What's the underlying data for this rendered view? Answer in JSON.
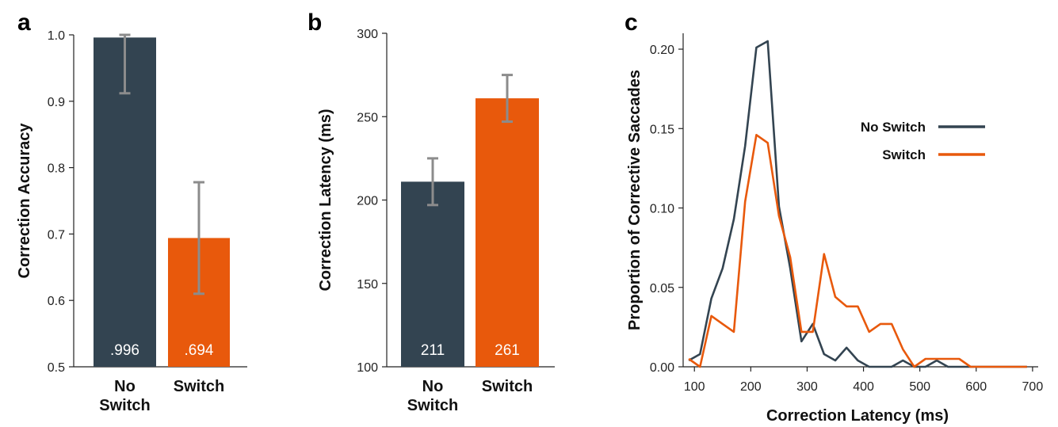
{
  "colors": {
    "no_switch": "#334451",
    "switch": "#E8590C",
    "error_bar": "#8C8C8C",
    "axis": "#222222"
  },
  "chart_data": [
    {
      "panel": "a",
      "type": "bar",
      "categories": [
        "No\nSwitch",
        "Switch"
      ],
      "values": [
        0.996,
        0.694
      ],
      "value_labels": [
        ".996",
        ".694"
      ],
      "error_low": [
        0.912,
        0.61
      ],
      "error_high": [
        1.0,
        0.778
      ],
      "ylabel": "Correction Accuracy",
      "xlabel": "",
      "ylim": [
        0.5,
        1.0
      ],
      "yticks": [
        0.5,
        0.6,
        0.7,
        0.8,
        0.9,
        1.0
      ],
      "ytick_labels": [
        "0.5",
        "0.6",
        "0.7",
        "0.8",
        "0.9",
        "1.0"
      ]
    },
    {
      "panel": "b",
      "type": "bar",
      "categories": [
        "No\nSwitch",
        "Switch"
      ],
      "values": [
        211,
        261
      ],
      "value_labels": [
        "211",
        "261"
      ],
      "error_low": [
        197,
        247
      ],
      "error_high": [
        225,
        275
      ],
      "ylabel": "Correction Latency (ms)",
      "xlabel": "",
      "ylim": [
        100,
        300
      ],
      "yticks": [
        100,
        150,
        200,
        250,
        300
      ],
      "ytick_labels": [
        "100",
        "150",
        "200",
        "250",
        "300"
      ]
    },
    {
      "panel": "c",
      "type": "line",
      "xlabel": "Correction Latency (ms)",
      "ylabel": "Proportion of Corrective Saccades",
      "xlim": [
        80,
        710
      ],
      "ylim": [
        0,
        0.21
      ],
      "xticks": [
        100,
        200,
        300,
        400,
        500,
        600,
        700
      ],
      "xtick_labels": [
        "100",
        "200",
        "300",
        "400",
        "500",
        "600",
        "700"
      ],
      "yticks": [
        0,
        0.05,
        0.1,
        0.15,
        0.2
      ],
      "ytick_labels": [
        "0.00",
        "0.05",
        "0.10",
        "0.15",
        "0.20"
      ],
      "legend_position": "right",
      "series": [
        {
          "name": "No Switch",
          "x": [
            90,
            110,
            130,
            150,
            170,
            190,
            210,
            230,
            250,
            270,
            290,
            310,
            330,
            350,
            370,
            390,
            410,
            430,
            450,
            470,
            490,
            510,
            530,
            550,
            570,
            590,
            610,
            630,
            650,
            670,
            690
          ],
          "y": [
            0.004,
            0.008,
            0.043,
            0.062,
            0.093,
            0.139,
            0.201,
            0.205,
            0.101,
            0.062,
            0.016,
            0.027,
            0.008,
            0.004,
            0.012,
            0.004,
            0,
            0,
            0,
            0.004,
            0,
            0,
            0.004,
            0,
            0,
            0,
            0,
            0,
            0,
            0,
            0
          ]
        },
        {
          "name": "Switch",
          "x": [
            90,
            110,
            130,
            150,
            170,
            190,
            210,
            230,
            250,
            270,
            290,
            310,
            330,
            350,
            370,
            390,
            410,
            430,
            450,
            470,
            490,
            510,
            530,
            550,
            570,
            590,
            610,
            630,
            650,
            670,
            690
          ],
          "y": [
            0.005,
            0,
            0.032,
            0.027,
            0.022,
            0.104,
            0.146,
            0.141,
            0.095,
            0.069,
            0.022,
            0.022,
            0.071,
            0.044,
            0.038,
            0.038,
            0.022,
            0.027,
            0.027,
            0.011,
            0,
            0.005,
            0.005,
            0.005,
            0.005,
            0,
            0,
            0,
            0,
            0,
            0
          ]
        }
      ]
    }
  ]
}
